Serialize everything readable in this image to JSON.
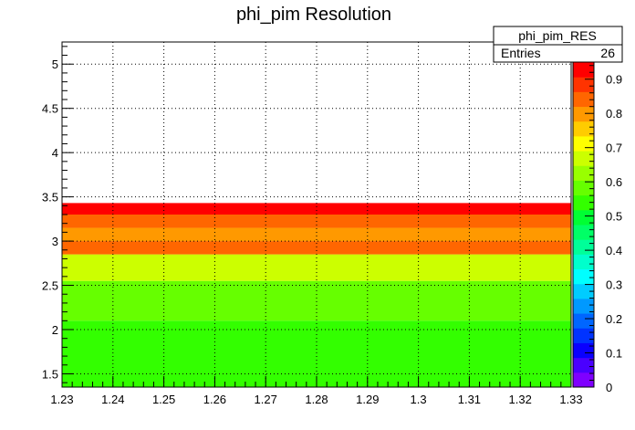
{
  "chart_data": {
    "type": "heatmap",
    "title": "phi_pim Resolution",
    "xlabel": "",
    "ylabel": "",
    "xlim": [
      1.23,
      1.33
    ],
    "ylim": [
      1.35,
      5.25
    ],
    "x_ticks": [
      "1.23",
      "1.24",
      "1.25",
      "1.26",
      "1.27",
      "1.28",
      "1.29",
      "1.3",
      "1.31",
      "1.32",
      "1.33"
    ],
    "y_ticks": [
      "1.5",
      "2",
      "2.5",
      "3",
      "3.5",
      "4",
      "4.5",
      "5"
    ],
    "z_ticks": [
      "0",
      "0.1",
      "0.2",
      "0.3",
      "0.4",
      "0.5",
      "0.6",
      "0.7",
      "0.8",
      "0.9"
    ],
    "zlim": [
      0,
      0.95
    ],
    "grid": true,
    "cells": [
      {
        "x0": 1.23,
        "x1": 1.33,
        "y0": 1.35,
        "y1": 2.1,
        "z": 0.52
      },
      {
        "x0": 1.23,
        "x1": 1.33,
        "y0": 2.1,
        "y1": 2.55,
        "z": 0.6
      },
      {
        "x0": 1.23,
        "x1": 1.33,
        "y0": 2.55,
        "y1": 2.85,
        "z": 0.68
      },
      {
        "x0": 1.23,
        "x1": 1.33,
        "y0": 2.85,
        "y1": 3.0,
        "z": 0.85
      },
      {
        "x0": 1.23,
        "x1": 1.33,
        "y0": 3.0,
        "y1": 3.15,
        "z": 0.8
      },
      {
        "x0": 1.23,
        "x1": 1.33,
        "y0": 3.15,
        "y1": 3.3,
        "z": 0.85
      },
      {
        "x0": 1.23,
        "x1": 1.33,
        "y0": 3.3,
        "y1": 3.43,
        "z": 0.93
      }
    ],
    "palette": [
      "#7f00ff",
      "#4a00ff",
      "#0a00ff",
      "#0033ff",
      "#0066ff",
      "#0099ff",
      "#00ccff",
      "#00ffff",
      "#00ffcc",
      "#00ff99",
      "#00ff66",
      "#00ff33",
      "#33ff00",
      "#66ff00",
      "#99ff00",
      "#ccff00",
      "#ffff00",
      "#ffcc00",
      "#ff9900",
      "#ff6600",
      "#ff3300",
      "#ff0000"
    ]
  },
  "stats_box": {
    "name": "phi_pim_RES",
    "entries_label": "Entries",
    "entries_value": "26"
  }
}
